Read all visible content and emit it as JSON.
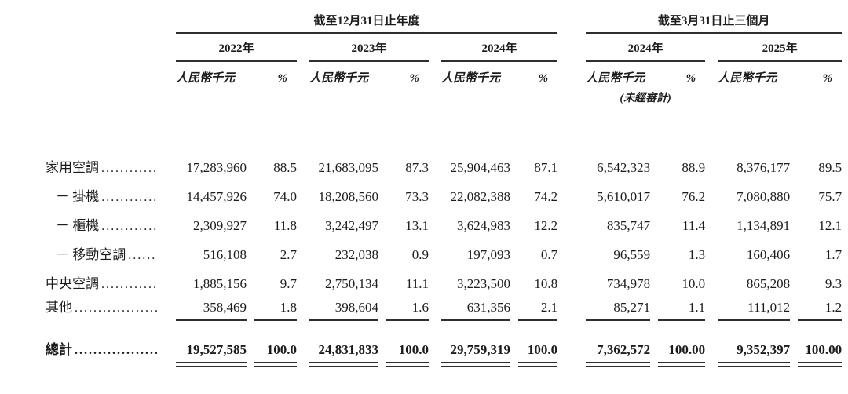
{
  "page": {
    "background_color": "#ffffff",
    "text_color": "#1c1c1c",
    "rule_color": "#2e2e2e"
  },
  "table": {
    "groups": [
      {
        "title": "截至12月31日止年度"
      },
      {
        "title": "截至3月31日止三個月"
      }
    ],
    "years": [
      "2022年",
      "2023年",
      "2024年",
      "2024年",
      "2025年"
    ],
    "unit_label": "人民幣千元",
    "percent_label": "%",
    "unaudited_note": "(未經審計)",
    "rows": [
      {
        "label": "家用空調",
        "indent": false,
        "underline": false,
        "values": [
          "17,283,960",
          "88.5",
          "21,683,095",
          "87.3",
          "25,904,463",
          "87.1",
          "6,542,323",
          "88.9",
          "8,376,177",
          "89.5"
        ]
      },
      {
        "label": "－ 掛機",
        "indent": true,
        "underline": false,
        "values": [
          "14,457,926",
          "74.0",
          "18,208,560",
          "73.3",
          "22,082,388",
          "74.2",
          "5,610,017",
          "76.2",
          "7,080,880",
          "75.7"
        ]
      },
      {
        "label": "－ 櫃機",
        "indent": true,
        "underline": false,
        "values": [
          "2,309,927",
          "11.8",
          "3,242,497",
          "13.1",
          "3,624,983",
          "12.2",
          "835,747",
          "11.4",
          "1,134,891",
          "12.1"
        ]
      },
      {
        "label": "－ 移動空調",
        "indent": true,
        "underline": false,
        "values": [
          "516,108",
          "2.7",
          "232,038",
          "0.9",
          "197,093",
          "0.7",
          "96,559",
          "1.3",
          "160,406",
          "1.7"
        ]
      },
      {
        "label": "中央空調",
        "indent": false,
        "underline": false,
        "values": [
          "1,885,156",
          "9.7",
          "2,750,134",
          "11.1",
          "3,223,500",
          "10.8",
          "734,978",
          "10.0",
          "865,208",
          "9.3"
        ]
      },
      {
        "label": "其他",
        "indent": false,
        "underline": true,
        "values": [
          "358,469",
          "1.8",
          "398,604",
          "1.6",
          "631,356",
          "2.1",
          "85,271",
          "1.1",
          "111,012",
          "1.2"
        ]
      }
    ],
    "total_row": {
      "label": "總計",
      "values": [
        "19,527,585",
        "100.0",
        "24,831,833",
        "100.0",
        "29,759,319",
        "100.0",
        "7,362,572",
        "100.00",
        "9,352,397",
        "100.00"
      ]
    }
  }
}
